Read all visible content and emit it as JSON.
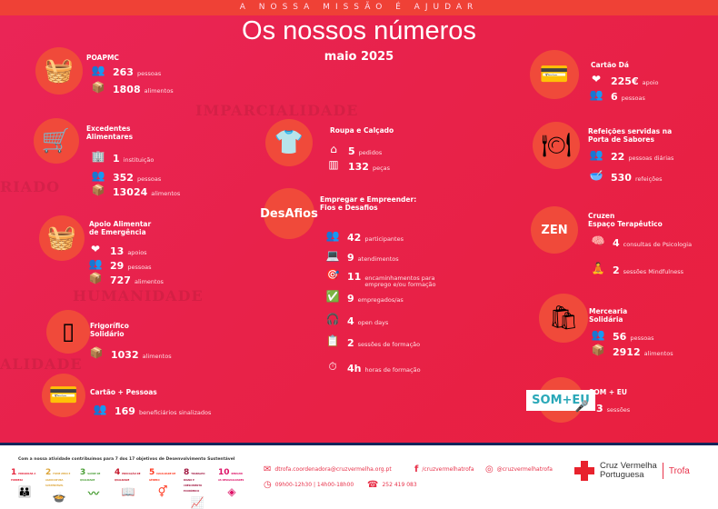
{
  "header": {
    "tagline": "A NOSSA MISSÃO É AJUDAR",
    "title": "Os nossos números",
    "subtitle": "maio 2025"
  },
  "watermarks": [
    "IMPARCIALIDADE",
    "RIADO",
    "HUMANIDADE",
    "ALIDADE"
  ],
  "colors": {
    "background": "#e8224a",
    "top_band": "#ef4136",
    "circle": "#f04a3a",
    "footer_line": "#14265a",
    "brand_red": "#e8222d"
  },
  "sections": [
    {
      "title": [
        "POAPMC"
      ],
      "icon": "picnic-basket-icon",
      "glyph": "🧺",
      "stats": [
        {
          "icon": "people-icon",
          "glyph": "👥",
          "value": "263",
          "label": "pessoas"
        },
        {
          "icon": "food-box-icon",
          "glyph": "📦",
          "value": "1808",
          "label": "alimentos"
        }
      ]
    },
    {
      "title": [
        "Excedentes",
        "Alimentares"
      ],
      "icon": "shopping-basket-icon",
      "glyph": "🛒",
      "stats": [
        {
          "icon": "building-icon",
          "glyph": "🏢",
          "value": "1",
          "label": "instituição"
        },
        {
          "icon": "people-icon",
          "glyph": "👥",
          "value": "352",
          "label": "pessoas"
        },
        {
          "icon": "food-box-icon",
          "glyph": "📦",
          "value": "13024",
          "label": "alimentos"
        }
      ]
    },
    {
      "title": [
        "Apoio Alimentar",
        "de Emergência"
      ],
      "icon": "fruit-basket-icon",
      "glyph": "🧺",
      "stats": [
        {
          "icon": "heart-hand-icon",
          "glyph": "❤",
          "value": "13",
          "label": "apoios"
        },
        {
          "icon": "people-icon",
          "glyph": "👥",
          "value": "29",
          "label": "pessoas"
        },
        {
          "icon": "food-box-icon",
          "glyph": "📦",
          "value": "727",
          "label": "alimentos"
        }
      ]
    },
    {
      "title": [
        "Frigorífico",
        "Solidário"
      ],
      "icon": "fridge-icon",
      "glyph": "▯",
      "stats": [
        {
          "icon": "food-box-icon",
          "glyph": "📦",
          "value": "1032",
          "label": "alimentos"
        }
      ]
    },
    {
      "title": [
        "Cartão + Pessoas"
      ],
      "icon": "cards-icon",
      "glyph": "💳",
      "stats": [
        {
          "icon": "group-icon",
          "glyph": "👥",
          "value": "169",
          "label": "beneficiários sinalizados"
        }
      ]
    },
    {
      "title": [
        "Roupa e Calçado"
      ],
      "icon": "clothes-icon",
      "glyph": "👕",
      "stats": [
        {
          "icon": "hanger-icon",
          "glyph": "⌂",
          "value": "5",
          "label": "pedidos"
        },
        {
          "icon": "clothes-rack-icon",
          "glyph": "▥",
          "value": "132",
          "label": "peças"
        }
      ]
    },
    {
      "title": [
        "Empregar e Empreender:",
        "Fios e Desafios"
      ],
      "icon": "desafios-logo-icon",
      "glyph": "",
      "logo_text": "DesAfios",
      "stats": [
        {
          "icon": "people-icon",
          "glyph": "👥",
          "value": "42",
          "label": "participantes"
        },
        {
          "icon": "support-desk-icon",
          "glyph": "💻",
          "value": "9",
          "label": "atendimentos"
        },
        {
          "icon": "target-briefcase-icon",
          "glyph": "🎯",
          "value": "11",
          "label": "encaminhamentos para\nemprego e/ou formação"
        },
        {
          "icon": "checkmark-icon",
          "glyph": "✅",
          "value": "9",
          "label": "empregados/as"
        },
        {
          "icon": "headset-icon",
          "glyph": "🎧",
          "value": "4",
          "label": "open days"
        },
        {
          "icon": "presentation-icon",
          "glyph": "📋",
          "value": "2",
          "label": "sessões de formação"
        },
        {
          "icon": "clock-icon",
          "glyph": "⏱",
          "value": "4h",
          "label": "horas de formação"
        }
      ]
    },
    {
      "title": [
        "Cartão Dá"
      ],
      "icon": "card-hand-icon",
      "glyph": "💳",
      "stats": [
        {
          "icon": "heart-hand-icon",
          "glyph": "❤",
          "value": "225€",
          "label": "apoio"
        },
        {
          "icon": "people-icon",
          "glyph": "👥",
          "value": "6",
          "label": "pessoas"
        }
      ]
    },
    {
      "title": [
        "Refeições servidas na",
        "Porta de Sabores"
      ],
      "icon": "plate-cutlery-icon",
      "glyph": "🍽",
      "stats": [
        {
          "icon": "people-icon",
          "glyph": "👥",
          "value": "22",
          "label": "pessoas diárias"
        },
        {
          "icon": "soup-bowl-icon",
          "glyph": "🥣",
          "value": "530",
          "label": "refeições"
        }
      ]
    },
    {
      "title": [
        "Cruzen",
        "Espaço Terapêutico"
      ],
      "icon": "cruzen-logo-icon",
      "glyph": "",
      "logo_text": "ZEN",
      "stats": [
        {
          "icon": "brain-hands-icon",
          "glyph": "🧠",
          "value": "4",
          "label": "consultas de Psicologia"
        },
        {
          "icon": "meditation-icon",
          "glyph": "🧘",
          "value": "2",
          "label": "sessões Mindfulness"
        }
      ]
    },
    {
      "title": [
        "Mercearia",
        "Solidária"
      ],
      "icon": "grocery-bag-icon",
      "glyph": "🛍",
      "stats": [
        {
          "icon": "people-icon",
          "glyph": "👥",
          "value": "56",
          "label": "pessoas"
        },
        {
          "icon": "food-box-icon",
          "glyph": "📦",
          "value": "2912",
          "label": "alimentos"
        }
      ]
    },
    {
      "title": [
        "SOM + EU"
      ],
      "icon": "som-eu-logo-icon",
      "glyph": "",
      "logo_text": "SOM+EU",
      "stats": [
        {
          "icon": "microphone-icon",
          "glyph": "🎤",
          "value": "3",
          "label": "sessões"
        }
      ]
    }
  ],
  "footer": {
    "ods_caption": "Com a nossa atividade contribuímos para 7 dos 17 objetivos de Desenvolvimento Sustentável",
    "ods": [
      {
        "num": "1",
        "label": "ERRADICAR A POBREZA",
        "color": "#e5243b",
        "glyph": "👪"
      },
      {
        "num": "2",
        "label": "FOME ZERO E AGRICULTURA SUSTENTÁVEL",
        "color": "#dda63a",
        "glyph": "🍲"
      },
      {
        "num": "3",
        "label": "SAÚDE DE QUALIDADE",
        "color": "#4c9f38",
        "glyph": "〰"
      },
      {
        "num": "4",
        "label": "EDUCAÇÃO DE QUALIDADE",
        "color": "#c5192d",
        "glyph": "📖"
      },
      {
        "num": "5",
        "label": "IGUALDADE DE GÉNERO",
        "color": "#ff3a21",
        "glyph": "⚥"
      },
      {
        "num": "8",
        "label": "TRABALHO DIGNO E CRESCIMENTO ECONÓMICO",
        "color": "#a21942",
        "glyph": "📈"
      },
      {
        "num": "10",
        "label": "REDUZIR AS DESIGUALDADES",
        "color": "#dd1367",
        "glyph": "◈"
      }
    ],
    "email": "dtrofa.coordenadora@cruzvermelha.org.pt",
    "facebook": "/cruzvermelhatrofa",
    "instagram": "@cruzvermelhatrofa",
    "hours": "09h00-12h30 | 14h00-18h00",
    "phone": "252 419 083",
    "brand": {
      "line1": "Cruz Vermelha",
      "line2": "Portuguesa",
      "branch": "Trofa"
    }
  }
}
